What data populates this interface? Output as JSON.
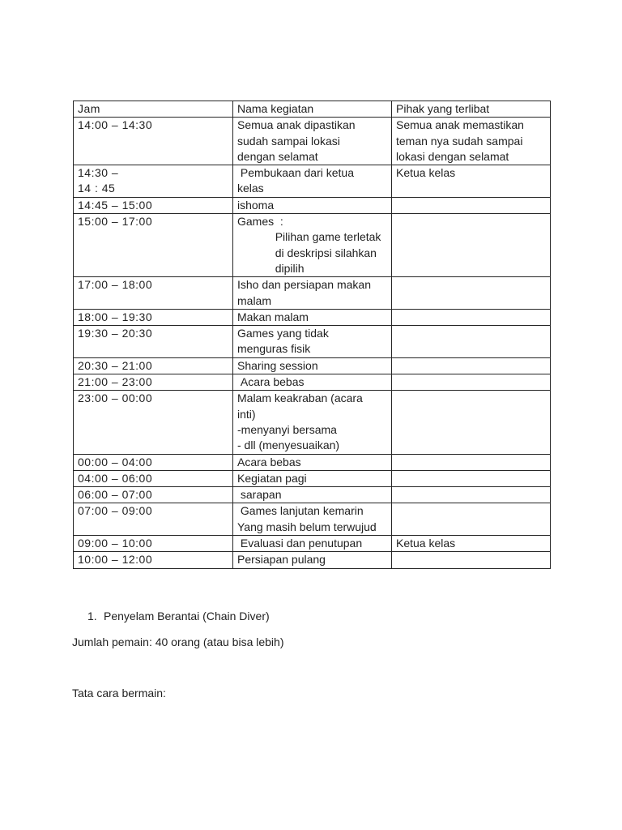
{
  "page": {
    "background_color": "#ffffff",
    "text_color": "#1f1f1f",
    "table_border_color": "#262626"
  },
  "schedule_table": {
    "columns": [
      "Jam",
      "Nama kegiatan",
      "Pihak yang terlibat"
    ],
    "rows": [
      {
        "jam": "14:00 – 14:30",
        "kegiatan": "Semua anak dipastikan\nsudah sampai lokasi\ndengan selamat",
        "pihak": "Semua anak memastikan\nteman nya sudah sampai\nlokasi dengan selamat"
      },
      {
        "jam": "14:30 –\n14 : 45",
        "kegiatan": " Pembukaan dari ketua\nkelas",
        "pihak": "Ketua kelas"
      },
      {
        "jam": "14:45 – 15:00",
        "kegiatan": "ishoma",
        "pihak": ""
      },
      {
        "jam": "15:00 – 17:00",
        "kegiatan": "Games  :\n            Pilihan game terletak\n            di deskripsi silahkan\n            dipilih",
        "pihak": ""
      },
      {
        "jam": "17:00 – 18:00",
        "kegiatan": "Isho dan persiapan makan\nmalam",
        "pihak": ""
      },
      {
        "jam": "18:00 – 19:30",
        "kegiatan": "Makan malam",
        "pihak": ""
      },
      {
        "jam": "19:30 – 20:30",
        "kegiatan": "Games yang tidak\nmenguras fisik",
        "pihak": ""
      },
      {
        "jam": "20:30 – 21:00",
        "kegiatan": "Sharing session",
        "pihak": ""
      },
      {
        "jam": "21:00 – 23:00",
        "kegiatan": " Acara bebas",
        "pihak": ""
      },
      {
        "jam": "23:00 – 00:00",
        "kegiatan": "Malam keakraban (acara\ninti)\n-menyanyi bersama\n- dll (menyesuaikan)",
        "pihak": ""
      },
      {
        "jam": "00:00 – 04:00",
        "kegiatan": "Acara bebas",
        "pihak": ""
      },
      {
        "jam": "04:00 – 06:00",
        "kegiatan": "Kegiatan pagi",
        "pihak": ""
      },
      {
        "jam": "06:00 – 07:00",
        "kegiatan": " sarapan",
        "pihak": ""
      },
      {
        "jam": "07:00 – 09:00",
        "kegiatan": " Games lanjutan kemarin\nYang masih belum terwujud",
        "pihak": ""
      },
      {
        "jam": "09:00 – 10:00",
        "kegiatan": " Evaluasi dan penutupan",
        "pihak": "Ketua kelas"
      },
      {
        "jam": "10:00 – 12:00",
        "kegiatan": "Persiapan pulang",
        "pihak": ""
      }
    ]
  },
  "games_section": {
    "list_number": "1.",
    "game_title": "Penyelam Berantai (Chain Diver)",
    "player_count_line": "Jumlah pemain: 40 orang (atau bisa lebih)",
    "instructions_heading": "Tata cara bermain:"
  }
}
